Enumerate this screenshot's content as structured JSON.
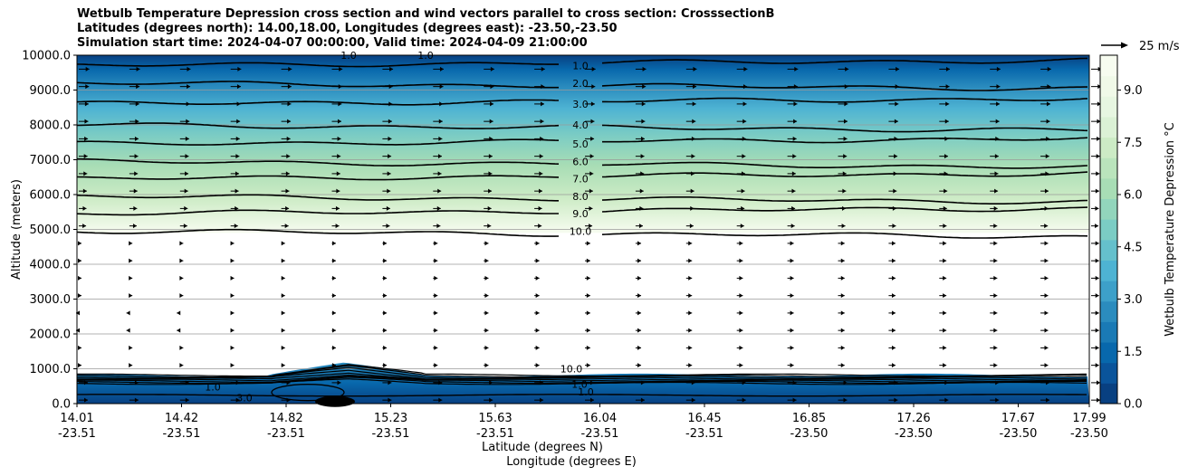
{
  "chart_data": {
    "type": "contour",
    "title_lines": [
      "Wetbulb Temperature Depression cross section and wind vectors parallel to cross section: CrosssectionB",
      "Latitudes (degrees north): 14.00,18.00, Longitudes (degrees east): -23.50,-23.50",
      "Simulation start time: 2024-04-07 00:00:00, Valid time: 2024-04-09 21:00:00"
    ],
    "xlabel_lat": "Latitude (degrees N)",
    "xlabel_lon": "Longitude (degrees E)",
    "ylabel": "Altitude (meters)",
    "x_ticks": [
      {
        "lat": "14.01",
        "lon": "-23.51"
      },
      {
        "lat": "14.42",
        "lon": "-23.51"
      },
      {
        "lat": "14.82",
        "lon": "-23.51"
      },
      {
        "lat": "15.23",
        "lon": "-23.51"
      },
      {
        "lat": "15.63",
        "lon": "-23.51"
      },
      {
        "lat": "16.04",
        "lon": "-23.51"
      },
      {
        "lat": "16.45",
        "lon": "-23.51"
      },
      {
        "lat": "16.85",
        "lon": "-23.50"
      },
      {
        "lat": "17.26",
        "lon": "-23.50"
      },
      {
        "lat": "17.67",
        "lon": "-23.50"
      },
      {
        "lat": "17.99",
        "lon": "-23.50"
      }
    ],
    "y_ticks": [
      "0.0",
      "1000.0",
      "2000.0",
      "3000.0",
      "4000.0",
      "5000.0",
      "6000.0",
      "7000.0",
      "8000.0",
      "9000.0",
      "10000.0"
    ],
    "ylim": [
      0,
      10000
    ],
    "contour_levels_upper": [
      {
        "value": 1.0,
        "altitude": 9700
      },
      {
        "value": 2.0,
        "altitude": 9200
      },
      {
        "value": 3.0,
        "altitude": 8600
      },
      {
        "value": 4.0,
        "altitude": 8000
      },
      {
        "value": 5.0,
        "altitude": 7450
      },
      {
        "value": 6.0,
        "altitude": 6950
      },
      {
        "value": 7.0,
        "altitude": 6450
      },
      {
        "value": 8.0,
        "altitude": 5950
      },
      {
        "value": 9.0,
        "altitude": 5450
      },
      {
        "value": 10.0,
        "altitude": 4950
      }
    ],
    "contour_labels": [
      "1.0",
      "1.0",
      "1.0",
      "2.0",
      "3.0",
      "4.0",
      "5.0",
      "6.0",
      "7.0",
      "8.0",
      "9.0",
      "10.0",
      "10.0",
      "1.0",
      "1.0",
      "1.0",
      "3.0"
    ],
    "colorbar": {
      "label": "Wetbulb Temperature Depression °C",
      "ticks": [
        "0.0",
        "1.5",
        "3.0",
        "4.5",
        "6.0",
        "7.5",
        "9.0"
      ],
      "range": [
        0,
        10
      ],
      "colormap": "GnBu_r"
    },
    "wind_key": "25 m/s"
  }
}
